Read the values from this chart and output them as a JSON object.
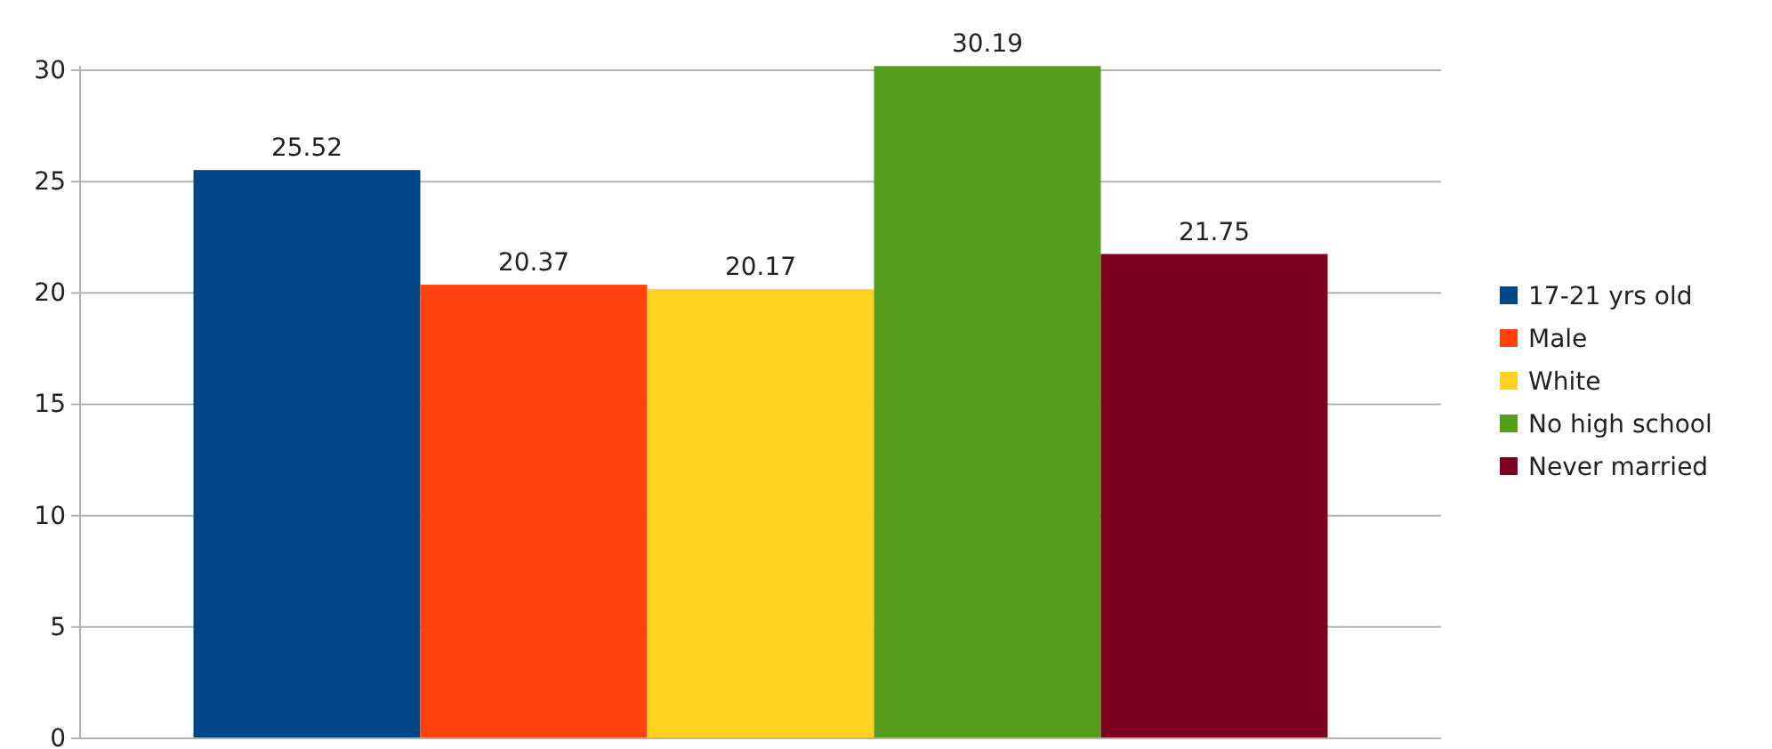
{
  "chart_data": {
    "type": "bar",
    "categories": [
      null
    ],
    "series": [
      {
        "name": "17-21 yrs old",
        "color": "#004586",
        "values": [
          25.52
        ]
      },
      {
        "name": "Male",
        "color": "#ff420e",
        "values": [
          20.37
        ]
      },
      {
        "name": "White",
        "color": "#ffd320",
        "values": [
          20.17
        ]
      },
      {
        "name": "No high school",
        "color": "#579d1c",
        "values": [
          30.19
        ]
      },
      {
        "name": "Never married",
        "color": "#7e0021",
        "values": [
          21.75
        ]
      }
    ],
    "ylim": [
      0,
      30.2
    ],
    "yticks": [
      0,
      5,
      10,
      15,
      20,
      25,
      30
    ],
    "grid": "y",
    "legend": "right",
    "data_labels": true
  }
}
